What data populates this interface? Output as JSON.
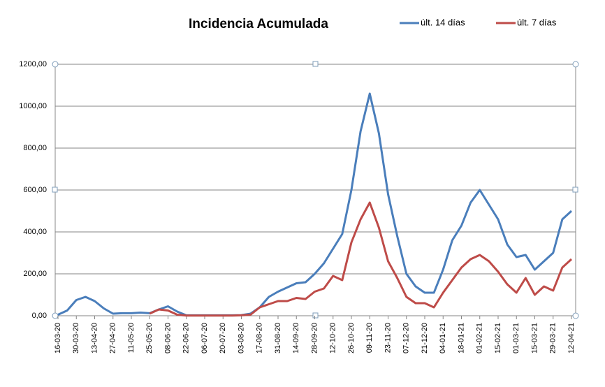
{
  "chart_data": {
    "type": "line",
    "title": "Incidencia Acumulada",
    "categories": [
      "16-03-20",
      null,
      "30-03-20",
      null,
      "13-04-20",
      null,
      "27-04-20",
      null,
      "11-05-20",
      null,
      "25-05-20",
      null,
      "08-06-20",
      null,
      "22-06-20",
      null,
      "06-07-20",
      null,
      "20-07-20",
      null,
      "03-08-20",
      null,
      "17-08-20",
      null,
      "31-08-20",
      null,
      "14-09-20",
      null,
      "28-09-20",
      null,
      "12-10-20",
      null,
      "26-10-20",
      null,
      "09-11-20",
      null,
      "23-11-20",
      null,
      "07-12-20",
      null,
      "21-12-20",
      null,
      "04-01-21",
      null,
      "18-01-21",
      null,
      "01-02-21",
      null,
      "15-02-21",
      null,
      "01-03-21",
      null,
      "15-03-21",
      null,
      "29-03-21",
      null,
      "12-04-21"
    ],
    "series": [
      {
        "name": "últ. 14 días",
        "color": "#4a7ebb",
        "values": [
          5,
          25,
          75,
          90,
          70,
          35,
          10,
          12,
          12,
          15,
          12,
          30,
          45,
          20,
          2,
          2,
          2,
          2,
          2,
          2,
          3,
          10,
          40,
          90,
          115,
          135,
          155,
          160,
          200,
          250,
          320,
          390,
          600,
          880,
          1060,
          870,
          580,
          380,
          200,
          140,
          110,
          110,
          220,
          360,
          430,
          540,
          600,
          530,
          460,
          340,
          280,
          290,
          220,
          260,
          300,
          460,
          500
        ]
      },
      {
        "name": "últ. 7 días",
        "color": "#be4b48",
        "values": [
          null,
          null,
          null,
          null,
          null,
          null,
          null,
          null,
          null,
          null,
          10,
          30,
          25,
          5,
          1,
          1,
          1,
          1,
          1,
          1,
          2,
          5,
          40,
          55,
          70,
          70,
          85,
          80,
          115,
          130,
          190,
          170,
          350,
          460,
          540,
          420,
          260,
          180,
          90,
          60,
          60,
          40,
          110,
          170,
          230,
          270,
          290,
          260,
          210,
          150,
          110,
          180,
          100,
          140,
          120,
          230,
          270
        ]
      }
    ],
    "ylim": [
      0,
      1200
    ],
    "yticks": [
      {
        "value": 0,
        "label": "0,00"
      },
      {
        "value": 200,
        "label": "200,00"
      },
      {
        "value": 400,
        "label": "400,00"
      },
      {
        "value": 600,
        "label": "600,00"
      },
      {
        "value": 800,
        "label": "800,00"
      },
      {
        "value": 1000,
        "label": "1000,00"
      },
      {
        "value": 1200,
        "label": "1200,00"
      }
    ],
    "grid": true,
    "legend": "top-right"
  }
}
